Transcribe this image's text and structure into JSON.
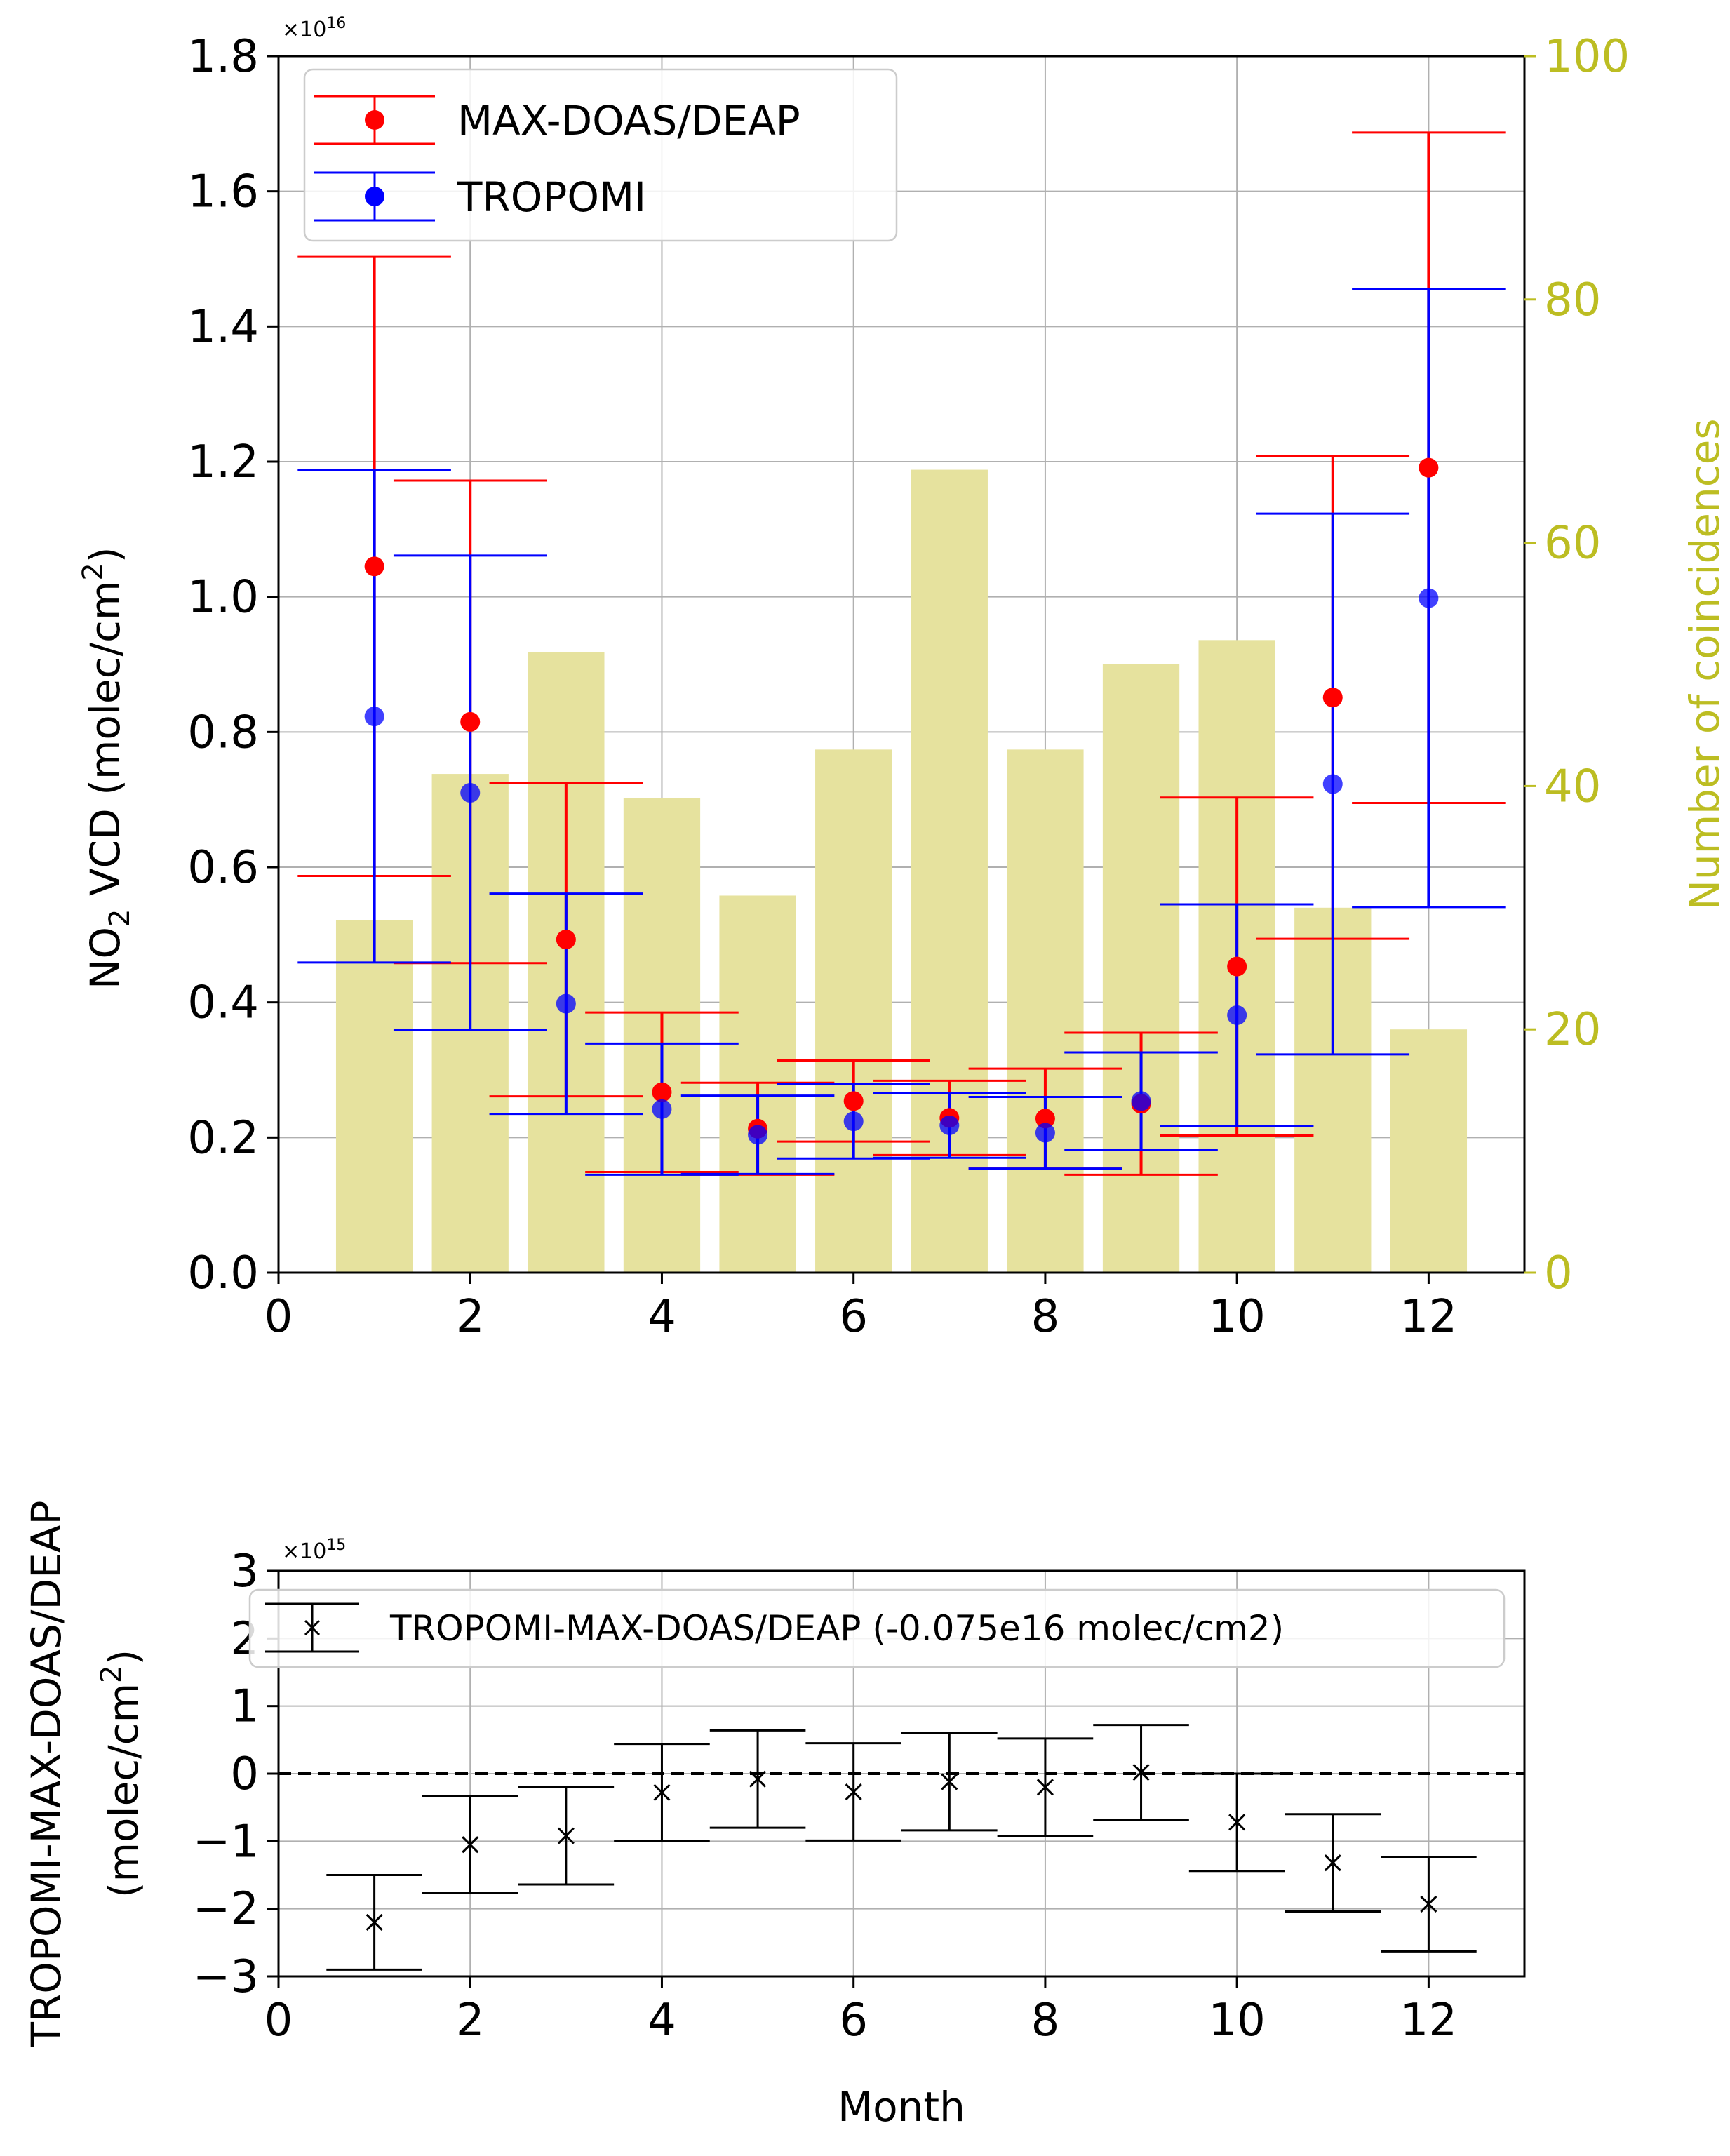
{
  "chart_data": [
    {
      "type": "scatter",
      "title": "",
      "xlabel": "",
      "ylabel_prefix": "NO",
      "ylabel_sub": "2",
      "ylabel_mid": " VCD (molec/cm",
      "ylabel_sup": "2",
      "ylabel_end": ")",
      "y2label": "Number of coincidences",
      "xlim": [
        0,
        13
      ],
      "ylim": [
        0,
        1.8
      ],
      "y2lim": [
        0,
        100
      ],
      "offset_base": "×10",
      "offset_exp": "16",
      "xticks": [
        0,
        2,
        4,
        6,
        8,
        10,
        12
      ],
      "xtick_labels": [
        "0",
        "2",
        "4",
        "6",
        "8",
        "10",
        "12"
      ],
      "yticks": [
        0.0,
        0.2,
        0.4,
        0.6,
        0.8,
        1.0,
        1.2,
        1.4,
        1.6,
        1.8
      ],
      "ytick_labels": [
        "0.0",
        "0.2",
        "0.4",
        "0.6",
        "0.8",
        "1.0",
        "1.2",
        "1.4",
        "1.6",
        "1.8"
      ],
      "y2ticks": [
        0,
        20,
        40,
        60,
        80,
        100
      ],
      "y2tick_labels": [
        "0",
        "20",
        "40",
        "60",
        "80",
        "100"
      ],
      "grid": true,
      "legend_position": "upper-left",
      "bars": {
        "name": "Number of coincidences",
        "color": "#e6e29e",
        "x": [
          1,
          2,
          3,
          4,
          5,
          6,
          7,
          8,
          9,
          10,
          11,
          12
        ],
        "values": [
          29,
          41,
          51,
          39,
          31,
          43,
          66,
          43,
          50,
          52,
          30,
          20
        ]
      },
      "series": [
        {
          "name": "MAX-DOAS/DEAP",
          "color": "#ff0000",
          "x": [
            1,
            2,
            3,
            4,
            5,
            6,
            7,
            8,
            9,
            10,
            11,
            12
          ],
          "y": [
            1.045,
            0.815,
            0.493,
            0.267,
            0.213,
            0.254,
            0.229,
            0.228,
            0.25,
            0.453,
            0.851,
            1.191
          ],
          "err": [
            0.458,
            0.357,
            0.232,
            0.118,
            0.068,
            0.06,
            0.055,
            0.074,
            0.105,
            0.25,
            0.357,
            0.496
          ]
        },
        {
          "name": "TROPOMI",
          "color": "#0000ff",
          "x": [
            1,
            2,
            3,
            4,
            5,
            6,
            7,
            8,
            9,
            10,
            11,
            12
          ],
          "y": [
            0.823,
            0.71,
            0.398,
            0.242,
            0.204,
            0.224,
            0.218,
            0.207,
            0.254,
            0.381,
            0.723,
            0.998
          ],
          "err": [
            0.364,
            0.351,
            0.163,
            0.097,
            0.058,
            0.055,
            0.048,
            0.053,
            0.072,
            0.164,
            0.4,
            0.457
          ]
        }
      ]
    },
    {
      "type": "scatter",
      "title": "",
      "xlabel": "Month",
      "ylabel_line1": "TROPOMI-MAX-DOAS/DEAP",
      "ylabel_line2_pre": "(molec/cm",
      "ylabel_line2_sup": "2",
      "ylabel_line2_end": ")",
      "xlim": [
        0,
        13
      ],
      "ylim": [
        -3,
        3
      ],
      "offset_base": "×10",
      "offset_exp": "15",
      "xticks": [
        0,
        2,
        4,
        6,
        8,
        10,
        12
      ],
      "xtick_labels": [
        "0",
        "2",
        "4",
        "6",
        "8",
        "10",
        "12"
      ],
      "yticks": [
        -3,
        -2,
        -1,
        0,
        1,
        2,
        3
      ],
      "ytick_labels": [
        "−3",
        "−2",
        "−1",
        "0",
        "1",
        "2",
        "3"
      ],
      "grid": true,
      "legend_position": "upper-left",
      "reference_line": 0,
      "series": [
        {
          "name": "TROPOMI-MAX-DOAS/DEAP (-0.075e16 molec/cm2)",
          "color": "#000000",
          "marker": "x",
          "x": [
            1,
            2,
            3,
            4,
            5,
            6,
            7,
            8,
            9,
            10,
            11,
            12
          ],
          "y": [
            -2.2,
            -1.05,
            -0.92,
            -0.28,
            -0.08,
            -0.27,
            -0.12,
            -0.2,
            0.02,
            -0.72,
            -1.32,
            -1.93
          ],
          "err": [
            0.7,
            0.72,
            0.72,
            0.72,
            0.72,
            0.72,
            0.72,
            0.72,
            0.7,
            0.72,
            0.72,
            0.7
          ]
        }
      ]
    }
  ]
}
